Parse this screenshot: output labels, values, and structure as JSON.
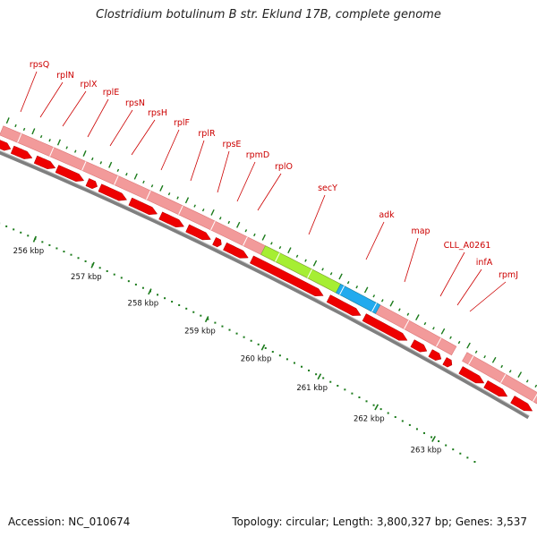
{
  "title": "Clostridium botulinum B str. Eklund 17B, complete genome",
  "footer": {
    "accession": "Accession: NC_010674",
    "summary": "Topology: circular; Length: 3,800,327 bp; Genes: 3,537"
  },
  "colors": {
    "cds_band": "#f29a9a",
    "cds_arrow": "#ee0000",
    "highlight_secY": "#a6ee33",
    "highlight_adk": "#22aaee",
    "backbone": "#7f7f7f",
    "tick": "#1a7a1a",
    "label": "#cc0000"
  },
  "genes": [
    {
      "name": "rpsQ"
    },
    {
      "name": "rplN"
    },
    {
      "name": "rplX"
    },
    {
      "name": "rplE"
    },
    {
      "name": "rpsN"
    },
    {
      "name": "rpsH"
    },
    {
      "name": "rplF"
    },
    {
      "name": "rplR"
    },
    {
      "name": "rpsE"
    },
    {
      "name": "rpmD"
    },
    {
      "name": "rplO"
    },
    {
      "name": "secY"
    },
    {
      "name": "adk"
    },
    {
      "name": "map"
    },
    {
      "name": "CLL_A0261"
    },
    {
      "name": "infA"
    },
    {
      "name": "rpmJ"
    }
  ],
  "scale_labels": [
    "256 kbp",
    "257 kbp",
    "258 kbp",
    "259 kbp",
    "260 kbp",
    "261 kbp",
    "262 kbp",
    "263 kbp"
  ]
}
